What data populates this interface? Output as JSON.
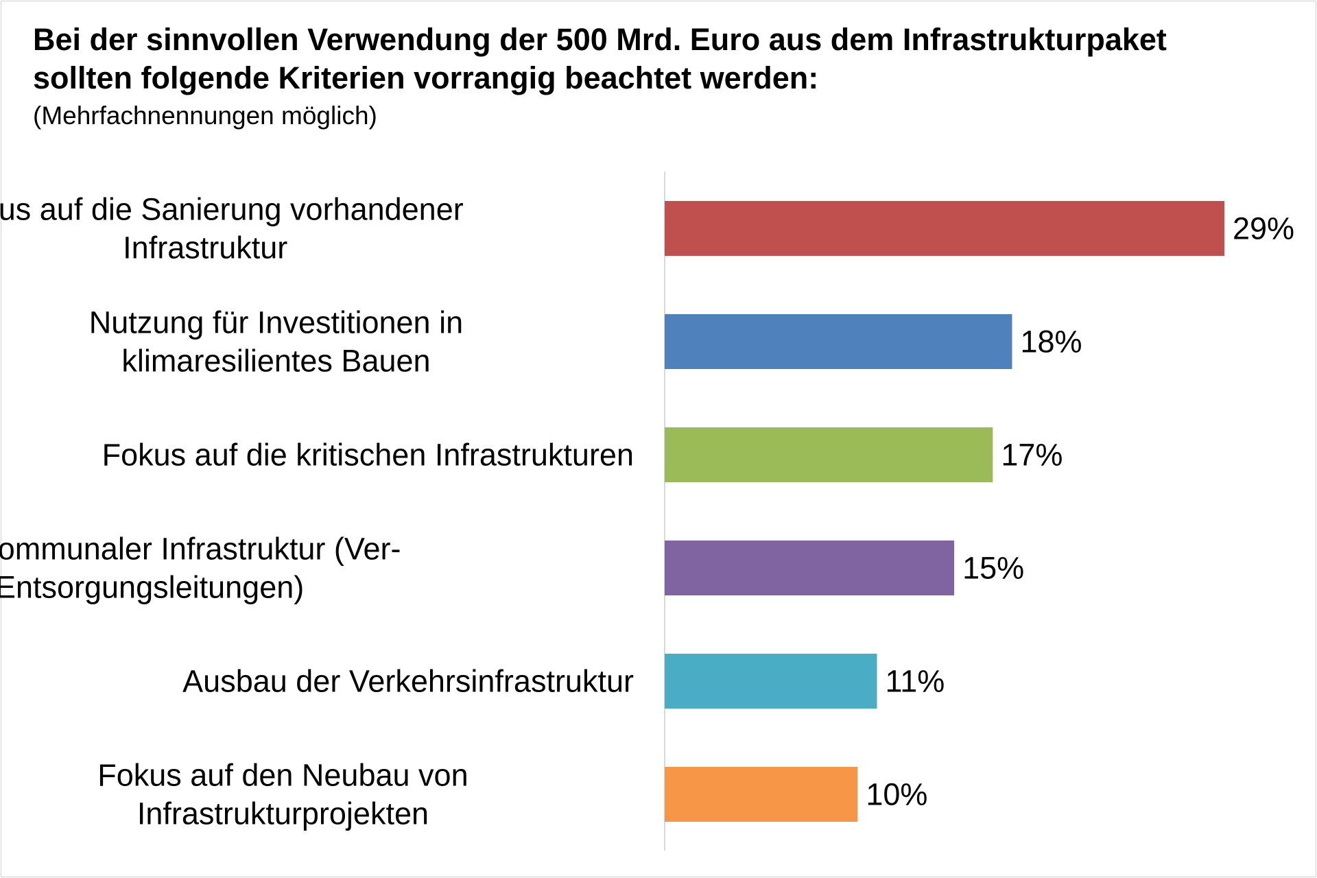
{
  "chart_data": {
    "type": "bar",
    "orientation": "horizontal",
    "title": "Bei der sinnvollen Verwendung der 500 Mrd. Euro aus dem Infrastrukturpaket\nsollten folgende Kriterien vorrangig beachtet werden:",
    "subtitle": "(Mehrfachnennungen möglich)",
    "xlabel": "",
    "ylabel": "",
    "grid": false,
    "legend": "none",
    "xlim": [
      0,
      29
    ],
    "categories": [
      [
        "Fokus auf die Sanierung vorhandener",
        "Infrastruktur"
      ],
      [
        "Nutzung für Investitionen in",
        "klimaresilientes Bauen"
      ],
      [
        "Fokus auf die kritischen Infrastrukturen"
      ],
      [
        "Fokus auf kommunaler Infrastruktur (Ver-",
        "und Entsorgungsleitungen)"
      ],
      [
        "Ausbau der Verkehrsinfrastruktur"
      ],
      [
        "Fokus auf den Neubau von",
        "Infrastrukturprojekten"
      ]
    ],
    "values": [
      29,
      18,
      17,
      15,
      11,
      10
    ],
    "value_labels": [
      "29%",
      "18%",
      "17%",
      "15%",
      "11%",
      "10%"
    ],
    "colors": [
      "#c0504d",
      "#4f81bd",
      "#9bbb59",
      "#8064a2",
      "#4bacc6",
      "#f79646"
    ]
  }
}
